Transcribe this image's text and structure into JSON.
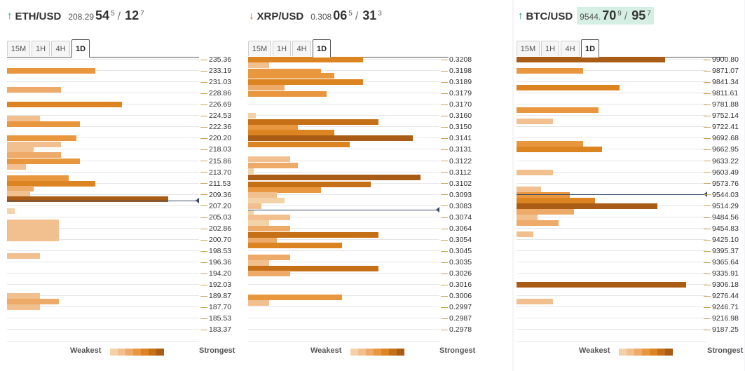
{
  "palette": [
    "#f4d2a8",
    "#f1c08e",
    "#eeaa68",
    "#e9973f",
    "#dd8422",
    "#c56f17",
    "#a95c15"
  ],
  "legend": {
    "weakest": "Weakest",
    "strongest": "Strongest"
  },
  "tabs": [
    "15M",
    "1H",
    "4H",
    "1D"
  ],
  "active_tab": "1D",
  "panels": [
    {
      "id": "eth",
      "pair": "ETH/USD",
      "direction": "up",
      "quote": {
        "base": "208.29",
        "big1": "54",
        "sup1": "5",
        "big2": "12",
        "sup2": "7",
        "highlight": false
      },
      "levels": [
        "235.36",
        "233.19",
        "231.03",
        "228.86",
        "226.69",
        "224.53",
        "222.36",
        "220.20",
        "218.03",
        "215.86",
        "213.70",
        "211.53",
        "209.36",
        "207.20",
        "205.03",
        "202.86",
        "200.70",
        "198.53",
        "196.36",
        "194.20",
        "192.03",
        "189.87",
        "187.70",
        "185.53",
        "183.37"
      ],
      "current_price": 208.29,
      "bars": [
        {
          "price": 233.19,
          "value": 0.46,
          "shade": 3
        },
        {
          "price": 229.5,
          "value": 0.28,
          "shade": 2
        },
        {
          "price": 226.69,
          "value": 0.6,
          "shade": 4
        },
        {
          "price": 224.0,
          "value": 0.17,
          "shade": 1
        },
        {
          "price": 223.0,
          "value": 0.38,
          "shade": 3
        },
        {
          "price": 220.2,
          "value": 0.36,
          "shade": 3
        },
        {
          "price": 219.0,
          "value": 0.28,
          "shade": 1
        },
        {
          "price": 218.03,
          "value": 0.14,
          "shade": 1
        },
        {
          "price": 217.0,
          "value": 0.28,
          "shade": 2
        },
        {
          "price": 215.86,
          "value": 0.38,
          "shade": 3
        },
        {
          "price": 214.7,
          "value": 0.1,
          "shade": 1
        },
        {
          "price": 212.5,
          "value": 0.32,
          "shade": 3
        },
        {
          "price": 211.53,
          "value": 0.46,
          "shade": 4
        },
        {
          "price": 210.6,
          "value": 0.14,
          "shade": 2
        },
        {
          "price": 209.6,
          "value": 0.12,
          "shade": 1
        },
        {
          "price": 208.5,
          "value": 0.84,
          "shade": 6
        },
        {
          "price": 206.2,
          "value": 0.04,
          "shade": 0
        },
        {
          "price": 204.0,
          "value": 0.27,
          "shade": 1
        },
        {
          "price": 203.0,
          "value": 0.27,
          "shade": 1
        },
        {
          "price": 202.0,
          "value": 0.27,
          "shade": 1
        },
        {
          "price": 201.0,
          "value": 0.27,
          "shade": 1
        },
        {
          "price": 197.6,
          "value": 0.17,
          "shade": 1
        },
        {
          "price": 189.87,
          "value": 0.17,
          "shade": 1
        },
        {
          "price": 188.8,
          "value": 0.27,
          "shade": 2
        },
        {
          "price": 187.7,
          "value": 0.17,
          "shade": 1
        }
      ]
    },
    {
      "id": "xrp",
      "pair": "XRP/USD",
      "direction": "down",
      "quote": {
        "base": "0.308",
        "big1": "06",
        "sup1": "5",
        "big2": "31",
        "sup2": "3",
        "highlight": false
      },
      "levels": [
        "0.3208",
        "0.3198",
        "0.3189",
        "0.3179",
        "0.3170",
        "0.3160",
        "0.3150",
        "0.3141",
        "0.3131",
        "0.3122",
        "0.3112",
        "0.3102",
        "0.3093",
        "0.3083",
        "0.3074",
        "0.3064",
        "0.3054",
        "0.3045",
        "0.3035",
        "0.3026",
        "0.3016",
        "0.3006",
        "0.2997",
        "0.2987",
        "0.2978"
      ],
      "current_price": 0.30806,
      "bars": [
        {
          "price": 0.3208,
          "value": 0.6,
          "shade": 4
        },
        {
          "price": 0.3203,
          "value": 0.11,
          "shade": 1
        },
        {
          "price": 0.3198,
          "value": 0.38,
          "shade": 3
        },
        {
          "price": 0.3194,
          "value": 0.45,
          "shade": 3
        },
        {
          "price": 0.3189,
          "value": 0.6,
          "shade": 4
        },
        {
          "price": 0.3184,
          "value": 0.19,
          "shade": 2
        },
        {
          "price": 0.3179,
          "value": 0.41,
          "shade": 3
        },
        {
          "price": 0.316,
          "value": 0.04,
          "shade": 0
        },
        {
          "price": 0.3155,
          "value": 0.68,
          "shade": 5
        },
        {
          "price": 0.315,
          "value": 0.26,
          "shade": 3
        },
        {
          "price": 0.3146,
          "value": 0.45,
          "shade": 4
        },
        {
          "price": 0.3141,
          "value": 0.86,
          "shade": 6
        },
        {
          "price": 0.3136,
          "value": 0.53,
          "shade": 4
        },
        {
          "price": 0.3123,
          "value": 0.22,
          "shade": 1
        },
        {
          "price": 0.3118,
          "value": 0.26,
          "shade": 2
        },
        {
          "price": 0.3113,
          "value": 0.03,
          "shade": 0
        },
        {
          "price": 0.3108,
          "value": 0.9,
          "shade": 6
        },
        {
          "price": 0.3102,
          "value": 0.64,
          "shade": 5
        },
        {
          "price": 0.3097,
          "value": 0.38,
          "shade": 3
        },
        {
          "price": 0.3093,
          "value": 0.15,
          "shade": 1
        },
        {
          "price": 0.3088,
          "value": 0.19,
          "shade": 0
        },
        {
          "price": 0.3083,
          "value": 0.07,
          "shade": 1
        },
        {
          "price": 0.3078,
          "value": 0.03,
          "shade": 0
        },
        {
          "price": 0.3074,
          "value": 0.22,
          "shade": 1
        },
        {
          "price": 0.3069,
          "value": 0.11,
          "shade": 0
        },
        {
          "price": 0.3064,
          "value": 0.22,
          "shade": 2
        },
        {
          "price": 0.3059,
          "value": 0.68,
          "shade": 5
        },
        {
          "price": 0.3054,
          "value": 0.15,
          "shade": 2
        },
        {
          "price": 0.305,
          "value": 0.49,
          "shade": 4
        },
        {
          "price": 0.304,
          "value": 0.22,
          "shade": 2
        },
        {
          "price": 0.3035,
          "value": 0.11,
          "shade": 1
        },
        {
          "price": 0.303,
          "value": 0.68,
          "shade": 5
        },
        {
          "price": 0.3026,
          "value": 0.22,
          "shade": 2
        },
        {
          "price": 0.3006,
          "value": 0.49,
          "shade": 3
        },
        {
          "price": 0.3001,
          "value": 0.11,
          "shade": 1
        }
      ]
    },
    {
      "id": "btc",
      "pair": "BTC/USD",
      "direction": "up",
      "quote": {
        "base": "9544.",
        "big1": "70",
        "sup1": "9",
        "big2": "95",
        "sup2": "7",
        "highlight": true
      },
      "levels": [
        "9900.80",
        "9871.07",
        "9841.34",
        "9811.61",
        "9781.88",
        "9752.14",
        "9722.41",
        "9692.68",
        "9662.95",
        "9633.22",
        "9603.49",
        "9573.76",
        "9544.03",
        "9514.29",
        "9484.56",
        "9454.83",
        "9425.10",
        "9395.37",
        "9365.64",
        "9335.91",
        "9306.18",
        "9276.44",
        "9246.71",
        "9216.98",
        "9187.25"
      ],
      "current_price": 9544.7,
      "bars": [
        {
          "price": 9900.8,
          "value": 0.78,
          "shade": 6
        },
        {
          "price": 9871.07,
          "value": 0.35,
          "shade": 3
        },
        {
          "price": 9826.5,
          "value": 0.54,
          "shade": 4
        },
        {
          "price": 9767.0,
          "value": 0.43,
          "shade": 3
        },
        {
          "price": 9737.3,
          "value": 0.19,
          "shade": 1
        },
        {
          "price": 9677.8,
          "value": 0.35,
          "shade": 3
        },
        {
          "price": 9662.95,
          "value": 0.45,
          "shade": 4
        },
        {
          "price": 9603.49,
          "value": 0.19,
          "shade": 1
        },
        {
          "price": 9558.9,
          "value": 0.13,
          "shade": 1
        },
        {
          "price": 9544.03,
          "value": 0.28,
          "shade": 3
        },
        {
          "price": 9529.2,
          "value": 0.41,
          "shade": 4
        },
        {
          "price": 9514.29,
          "value": 0.74,
          "shade": 6
        },
        {
          "price": 9499.4,
          "value": 0.3,
          "shade": 2
        },
        {
          "price": 9484.56,
          "value": 0.11,
          "shade": 1
        },
        {
          "price": 9469.7,
          "value": 0.22,
          "shade": 2
        },
        {
          "price": 9440.0,
          "value": 0.09,
          "shade": 1
        },
        {
          "price": 9306.18,
          "value": 0.89,
          "shade": 6
        },
        {
          "price": 9261.6,
          "value": 0.19,
          "shade": 1
        }
      ]
    }
  ]
}
